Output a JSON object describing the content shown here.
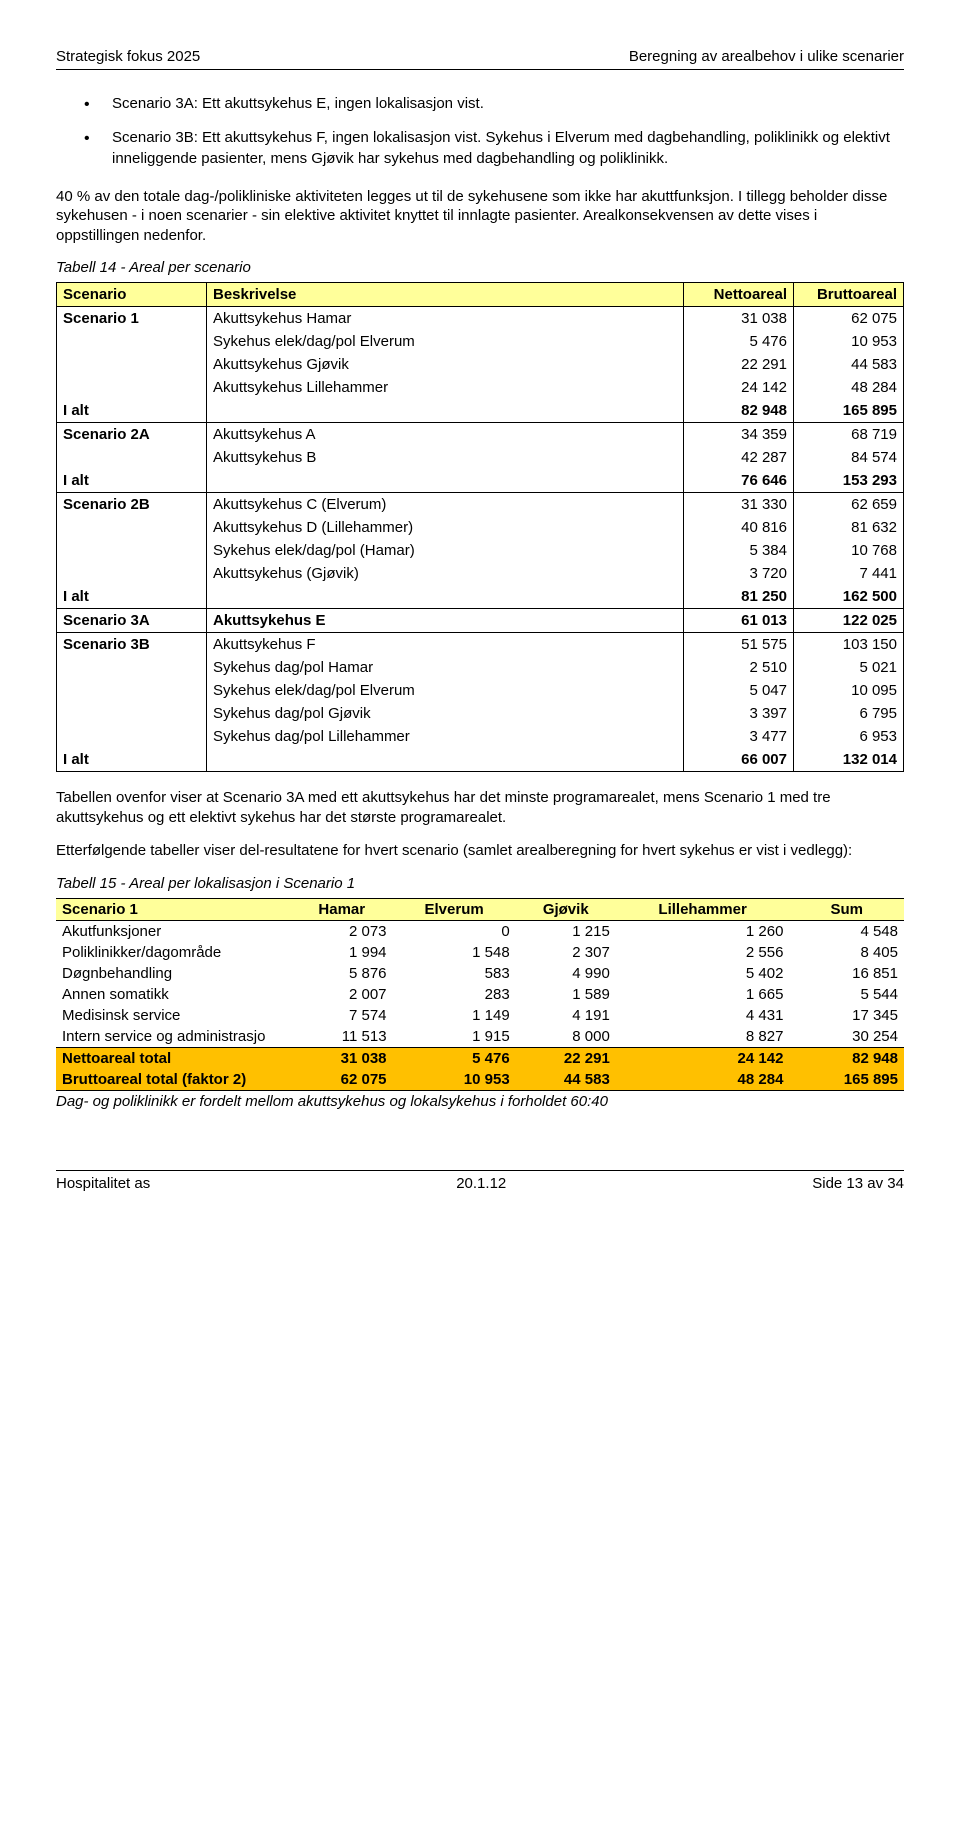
{
  "header": {
    "left": "Strategisk fokus 2025",
    "right": "Beregning av arealbehov i ulike scenarier"
  },
  "bullets": [
    "Scenario 3A: Ett akuttsykehus E, ingen lokalisasjon vist.",
    "Scenario 3B: Ett akuttsykehus F, ingen lokalisasjon vist. Sykehus i Elverum med dagbehandling, poliklinikk og elektivt inneliggende pasienter, mens Gjøvik har sykehus med dagbehandling og poliklinikk."
  ],
  "para1": "40 % av den totale dag-/polikliniske aktiviteten legges ut til de sykehusene som ikke har akuttfunksjon. I tillegg beholder disse sykehusen - i noen scenarier - sin elektive aktivitet knyttet til innlagte pasienter. Arealkonsekvensen av dette vises i oppstillingen nedenfor.",
  "caption14": "Tabell 14 - Areal per scenario",
  "t14": {
    "headers": [
      "Scenario",
      "Beskrivelse",
      "Nettoareal",
      "Bruttoareal"
    ],
    "rows": [
      {
        "c0": "Scenario 1",
        "c1": "Akuttsykehus Hamar",
        "n": "31 038",
        "b": "62 075",
        "sum": false
      },
      {
        "c0": "",
        "c1": "Sykehus elek/dag/pol Elverum",
        "n": "5 476",
        "b": "10 953",
        "sum": false
      },
      {
        "c0": "",
        "c1": "Akuttsykehus Gjøvik",
        "n": "22 291",
        "b": "44 583",
        "sum": false
      },
      {
        "c0": "",
        "c1": "Akuttsykehus Lillehammer",
        "n": "24 142",
        "b": "48 284",
        "sum": false
      },
      {
        "c0": "I alt",
        "c1": "",
        "n": "82 948",
        "b": "165 895",
        "sum": true
      },
      {
        "c0": "Scenario 2A",
        "c1": "Akuttsykehus A",
        "n": "34 359",
        "b": "68 719",
        "sum": false
      },
      {
        "c0": "",
        "c1": "Akuttsykehus B",
        "n": "42 287",
        "b": "84 574",
        "sum": false
      },
      {
        "c0": "I alt",
        "c1": "",
        "n": "76 646",
        "b": "153 293",
        "sum": true
      },
      {
        "c0": "Scenario 2B",
        "c1": "Akuttsykehus C (Elverum)",
        "n": "31 330",
        "b": "62 659",
        "sum": false
      },
      {
        "c0": "",
        "c1": "Akuttsykehus D (Lillehammer)",
        "n": "40 816",
        "b": "81 632",
        "sum": false
      },
      {
        "c0": "",
        "c1": "Sykehus elek/dag/pol (Hamar)",
        "n": "5 384",
        "b": "10 768",
        "sum": false
      },
      {
        "c0": "",
        "c1": "Akuttsykehus (Gjøvik)",
        "n": "3 720",
        "b": "7 441",
        "sum": false
      },
      {
        "c0": "I alt",
        "c1": "",
        "n": "81 250",
        "b": "162 500",
        "sum": true
      },
      {
        "c0": "Scenario 3A",
        "c1": "Akuttsykehus E",
        "n": "61 013",
        "b": "122 025",
        "sum": true
      },
      {
        "c0": "Scenario 3B",
        "c1": "Akuttsykehus F",
        "n": "51 575",
        "b": "103 150",
        "sum": false
      },
      {
        "c0": "",
        "c1": "Sykehus dag/pol Hamar",
        "n": "2 510",
        "b": "5 021",
        "sum": false
      },
      {
        "c0": "",
        "c1": "Sykehus elek/dag/pol Elverum",
        "n": "5 047",
        "b": "10 095",
        "sum": false
      },
      {
        "c0": "",
        "c1": "Sykehus dag/pol Gjøvik",
        "n": "3 397",
        "b": "6 795",
        "sum": false
      },
      {
        "c0": "",
        "c1": "Sykehus dag/pol Lillehammer",
        "n": "3 477",
        "b": "6 953",
        "sum": false
      },
      {
        "c0": "I alt",
        "c1": "",
        "n": "66 007",
        "b": "132 014",
        "sum": true,
        "last": true
      }
    ]
  },
  "para2": "Tabellen ovenfor viser at Scenario 3A med ett akuttsykehus har det minste programarealet, mens Scenario 1 med tre akuttsykehus og ett elektivt sykehus har det største programarealet.",
  "para3": "Etterfølgende tabeller viser del-resultatene for hvert scenario (samlet arealberegning for hvert sykehus er vist i vedlegg):",
  "caption15": "Tabell 15 - Areal per lokalisasjon i Scenario 1",
  "t15": {
    "headers": [
      "Scenario 1",
      "Hamar",
      "Elverum",
      "Gjøvik",
      "Lillehammer",
      "Sum"
    ],
    "rows": [
      {
        "l": "Akutfunksjoner",
        "v": [
          "2 073",
          "0",
          "1 215",
          "1 260",
          "4 548"
        ]
      },
      {
        "l": "Poliklinikker/dagområde",
        "v": [
          "1 994",
          "1 548",
          "2 307",
          "2 556",
          "8 405"
        ]
      },
      {
        "l": "Døgnbehandling",
        "v": [
          "5 876",
          "583",
          "4 990",
          "5 402",
          "16 851"
        ]
      },
      {
        "l": "Annen somatikk",
        "v": [
          "2 007",
          "283",
          "1 589",
          "1 665",
          "5 544"
        ]
      },
      {
        "l": "Medisinsk service",
        "v": [
          "7 574",
          "1 149",
          "4 191",
          "4 431",
          "17 345"
        ]
      },
      {
        "l": "Intern service og administrasjo",
        "v": [
          "11 513",
          "1 915",
          "8 000",
          "8 827",
          "30 254"
        ]
      }
    ],
    "netto": {
      "l": "Nettoareal total",
      "v": [
        "31 038",
        "5 476",
        "22 291",
        "24 142",
        "82 948"
      ]
    },
    "brutto": {
      "l": "Bruttoareal total (faktor 2)",
      "v": [
        "62 075",
        "10 953",
        "44 583",
        "48 284",
        "165 895"
      ]
    }
  },
  "footnote15": "Dag- og poliklinikk er fordelt mellom akuttsykehus og lokalsykehus i forholdet 60:40",
  "footer": {
    "left": "Hospitalitet as",
    "center": "20.1.12",
    "right": "Side 13 av 34"
  }
}
